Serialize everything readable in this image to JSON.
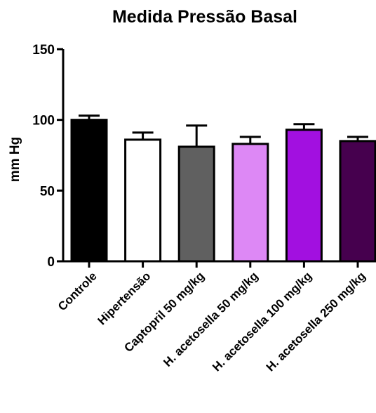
{
  "chart_data": {
    "type": "bar",
    "title": "Medida Pressão Basal",
    "xlabel": "",
    "ylabel": "mm Hg",
    "ylim": [
      0,
      150
    ],
    "yticks": [
      0,
      50,
      100,
      150
    ],
    "categories": [
      "Controle",
      "Hipertensão",
      "Captopril 50 mg/kg",
      "H. acetosella 50 mg/kg",
      "H. acetosella 100 mg/kg",
      "H. acetosella 250 mg/kg"
    ],
    "values": [
      100,
      86,
      81,
      83,
      93,
      85
    ],
    "error": [
      3,
      5,
      15,
      5,
      4,
      3
    ],
    "colors": [
      "#000000",
      "#ffffff",
      "#606060",
      "#dd88f5",
      "#a210e0",
      "#46004e"
    ],
    "grid": false,
    "legend": "none"
  }
}
